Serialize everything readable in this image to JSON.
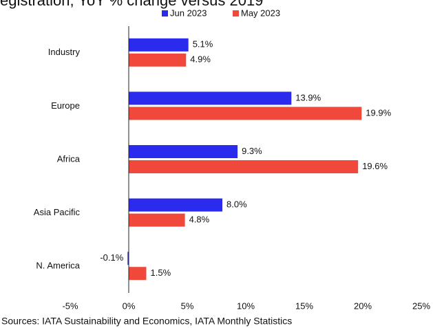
{
  "chart_data": {
    "type": "bar",
    "orientation": "horizontal",
    "title": "egistration, YoY % change versus 2019",
    "categories": [
      "Industry",
      "Europe",
      "Africa",
      "Asia Pacific",
      "N. America"
    ],
    "series": [
      {
        "name": "Jun 2023",
        "color": "#2b2bee",
        "values": [
          5.1,
          13.9,
          9.3,
          8.0,
          -0.1
        ],
        "value_labels": [
          "5.1%",
          "13.9%",
          "9.3%",
          "8.0%",
          "-0.1%"
        ]
      },
      {
        "name": "May 2023",
        "color": "#f0483a",
        "values": [
          4.9,
          19.9,
          19.6,
          4.8,
          1.5
        ],
        "value_labels": [
          "4.9%",
          "19.9%",
          "19.6%",
          "4.8%",
          "1.5%"
        ]
      }
    ],
    "xlim": [
      -5,
      25
    ],
    "xticks": [
      {
        "value": -5,
        "label": "-5%"
      },
      {
        "value": 0,
        "label": "0%"
      },
      {
        "value": 5,
        "label": "5%"
      },
      {
        "value": 10,
        "label": "10%"
      },
      {
        "value": 15,
        "label": "15%"
      },
      {
        "value": 20,
        "label": "20%"
      },
      {
        "value": 25,
        "label": "25%"
      }
    ],
    "legend_position": "top",
    "source": "Sources: IATA Sustainability and Economics, IATA Monthly Statistics"
  }
}
